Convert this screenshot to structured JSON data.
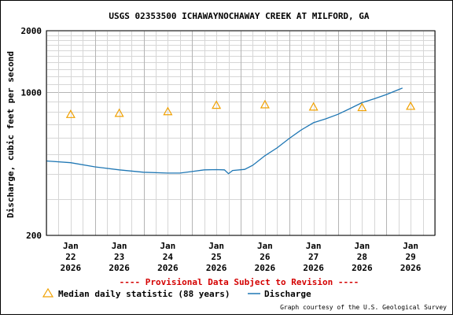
{
  "chart_data": {
    "type": "line",
    "title": "USGS 02353500 ICHAWAYNOCHAWAY CREEK AT MILFORD, GA",
    "ylabel": "Discharge, cubic feet per second",
    "yscale": "log",
    "ylim": [
      200,
      2000
    ],
    "yticks": [
      "200",
      "1000",
      "2000"
    ],
    "xlim": [
      "2026-01-21T12:00",
      "2026-01-29T12:00"
    ],
    "xtick_labels": [
      {
        "x": "2026-01-22",
        "lines": [
          "Jan",
          "22",
          "2026"
        ]
      },
      {
        "x": "2026-01-23",
        "lines": [
          "Jan",
          "23",
          "2026"
        ]
      },
      {
        "x": "2026-01-24",
        "lines": [
          "Jan",
          "24",
          "2026"
        ]
      },
      {
        "x": "2026-01-25",
        "lines": [
          "Jan",
          "25",
          "2026"
        ]
      },
      {
        "x": "2026-01-26",
        "lines": [
          "Jan",
          "26",
          "2026"
        ]
      },
      {
        "x": "2026-01-27",
        "lines": [
          "Jan",
          "27",
          "2026"
        ]
      },
      {
        "x": "2026-01-28",
        "lines": [
          "Jan",
          "28",
          "2026"
        ]
      },
      {
        "x": "2026-01-29",
        "lines": [
          "Jan",
          "29",
          "2026"
        ]
      }
    ],
    "grid": true,
    "colors": {
      "discharge": "#1f77b4",
      "median": "#f0a000",
      "provisional": "#d40000"
    },
    "series": [
      {
        "name": "Discharge",
        "style": "line",
        "points": [
          [
            "2026-01-21T12:00",
            462
          ],
          [
            "2026-01-22T00:00",
            453
          ],
          [
            "2026-01-22T12:00",
            432
          ],
          [
            "2026-01-23T00:00",
            418
          ],
          [
            "2026-01-23T12:00",
            407
          ],
          [
            "2026-01-24T00:00",
            403
          ],
          [
            "2026-01-24T06:00",
            403
          ],
          [
            "2026-01-24T12:00",
            410
          ],
          [
            "2026-01-24T18:00",
            418
          ],
          [
            "2026-01-25T00:00",
            419
          ],
          [
            "2026-01-25T04:00",
            418
          ],
          [
            "2026-01-25T06:00",
            400
          ],
          [
            "2026-01-25T08:00",
            415
          ],
          [
            "2026-01-25T14:00",
            420
          ],
          [
            "2026-01-25T18:00",
            440
          ],
          [
            "2026-01-26T00:00",
            490
          ],
          [
            "2026-01-26T06:00",
            535
          ],
          [
            "2026-01-26T12:00",
            595
          ],
          [
            "2026-01-26T18:00",
            655
          ],
          [
            "2026-01-27T00:00",
            710
          ],
          [
            "2026-01-27T06:00",
            742
          ],
          [
            "2026-01-27T12:00",
            780
          ],
          [
            "2026-01-27T18:00",
            832
          ],
          [
            "2026-01-28T00:00",
            890
          ],
          [
            "2026-01-28T06:00",
            930
          ],
          [
            "2026-01-28T12:00",
            975
          ],
          [
            "2026-01-28T18:00",
            1030
          ],
          [
            "2026-01-28T20:00",
            1050
          ]
        ]
      },
      {
        "name": "Median daily statistic (88 years)",
        "style": "triangle",
        "points": [
          [
            "2026-01-22",
            780
          ],
          [
            "2026-01-23",
            790
          ],
          [
            "2026-01-24",
            805
          ],
          [
            "2026-01-25",
            865
          ],
          [
            "2026-01-26",
            870
          ],
          [
            "2026-01-27",
            848
          ],
          [
            "2026-01-28",
            843
          ],
          [
            "2026-01-29",
            855
          ]
        ]
      }
    ]
  },
  "notice": "---- Provisional Data Subject to Revision ----",
  "credit": "Graph courtesy of the U.S. Geological Survey"
}
